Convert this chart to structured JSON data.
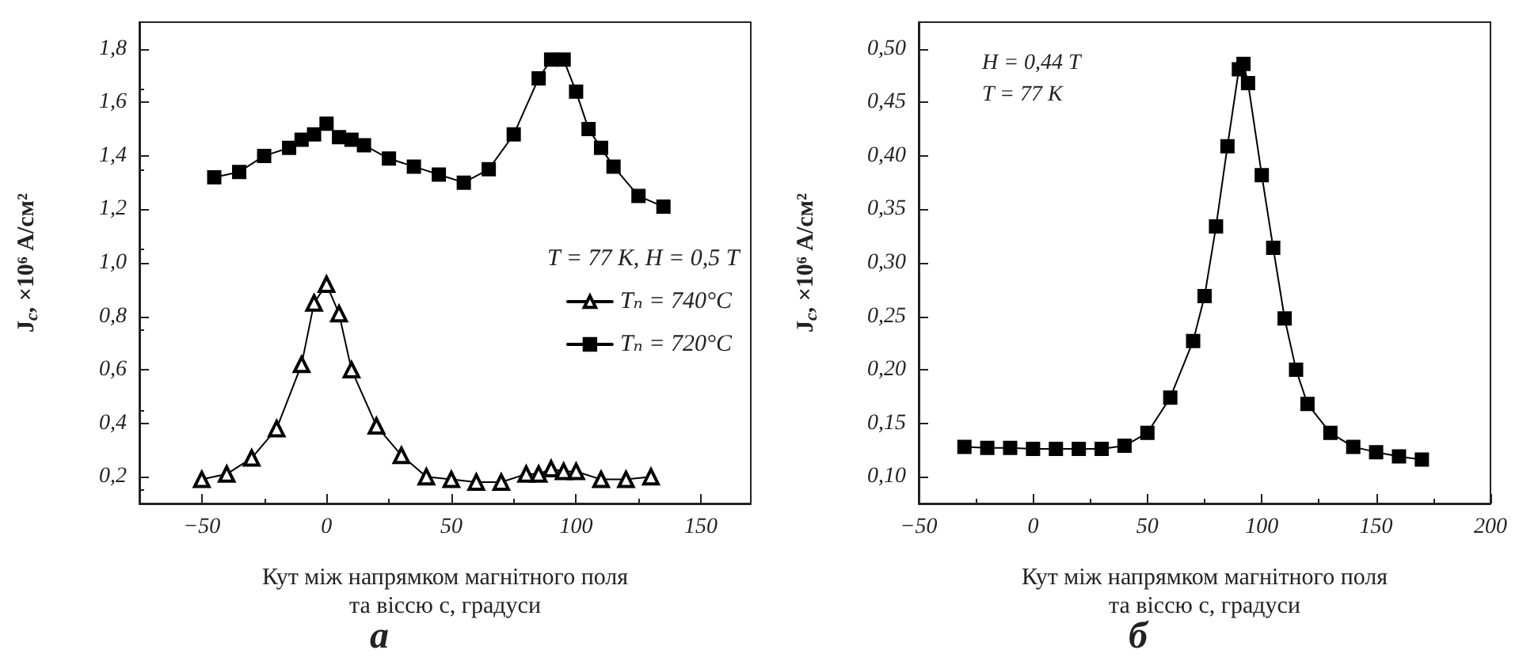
{
  "chart_data": [
    {
      "type": "line",
      "title": "а",
      "xlabel": "Кут між напрямком магнітного поля\nта віссю c, градуси",
      "ylabel": "J$_{c}$, ×10⁶ А/см²",
      "legend_title": "T = 77 К, H = 0,5 T",
      "legend": "right",
      "line_style": "solid",
      "grid": false,
      "xlim": [
        -75,
        170
      ],
      "xticks": [
        {
          "value": -50,
          "label": "−50"
        },
        0,
        50,
        100,
        150
      ],
      "ylim": [
        0.1,
        1.9
      ],
      "yticks": [
        {
          "value": 0.2,
          "label": "0,2"
        },
        {
          "value": 0.4,
          "label": "0,4"
        },
        {
          "value": 0.6,
          "label": "0,6"
        },
        {
          "value": 0.8,
          "label": "0,8"
        },
        {
          "value": 1.0,
          "label": "1,0"
        },
        {
          "value": 1.2,
          "label": "1,2"
        },
        {
          "value": 1.4,
          "label": "1,4"
        },
        {
          "value": 1.6,
          "label": "1,6"
        },
        {
          "value": 1.8,
          "label": "1,8"
        }
      ],
      "series": [
        {
          "name": "Tₙ = 740°C",
          "color": "#000000",
          "marker": "triangle",
          "x": [
            -50,
            -40,
            -30,
            -20,
            -10,
            -5,
            0,
            5,
            10,
            20,
            30,
            40,
            50,
            60,
            70,
            80,
            85,
            90,
            95,
            100,
            110,
            120,
            130
          ],
          "values": [
            0.19,
            0.21,
            0.27,
            0.38,
            0.62,
            0.85,
            0.92,
            0.81,
            0.6,
            0.39,
            0.28,
            0.2,
            0.19,
            0.18,
            0.18,
            0.21,
            0.21,
            0.23,
            0.22,
            0.22,
            0.19,
            0.19,
            0.2
          ]
        },
        {
          "name": "Tₙ = 720°C",
          "color": "#000000",
          "marker": "square",
          "x": [
            -45,
            -35,
            -25,
            -15,
            -10,
            -5,
            0,
            5,
            10,
            15,
            25,
            35,
            45,
            55,
            65,
            75,
            85,
            90,
            95,
            100,
            105,
            110,
            115,
            125,
            135
          ],
          "values": [
            1.32,
            1.34,
            1.4,
            1.43,
            1.46,
            1.48,
            1.52,
            1.47,
            1.46,
            1.44,
            1.39,
            1.36,
            1.33,
            1.3,
            1.35,
            1.48,
            1.69,
            1.76,
            1.76,
            1.64,
            1.5,
            1.43,
            1.36,
            1.25,
            1.21
          ]
        }
      ]
    },
    {
      "type": "line",
      "title": "б",
      "xlabel": "Кут між напрямком магнітного поля\nта віссю c, градуси",
      "ylabel": "J$_{c}$, ×10⁶ А/см²",
      "annotations": [
        "H = 0,44 T",
        "T = 77 К"
      ],
      "marker": "square",
      "line_style": "solid",
      "grid": false,
      "xlim": [
        -50,
        200
      ],
      "xticks": [
        {
          "value": -50,
          "label": "−50"
        },
        0,
        50,
        100,
        150,
        200
      ],
      "ylim": [
        0.075,
        0.525
      ],
      "yticks": [
        {
          "value": 0.1,
          "label": "0,10"
        },
        {
          "value": 0.15,
          "label": "0,15"
        },
        {
          "value": 0.2,
          "label": "0,20"
        },
        {
          "value": 0.25,
          "label": "0,25"
        },
        {
          "value": 0.3,
          "label": "0,30"
        },
        {
          "value": 0.35,
          "label": "0,35"
        },
        {
          "value": 0.4,
          "label": "0,40"
        },
        {
          "value": 0.45,
          "label": "0,45"
        },
        {
          "value": 0.5,
          "label": "0,50"
        }
      ],
      "series": [
        {
          "color": "#000000",
          "x": [
            -30,
            -20,
            -10,
            0,
            10,
            20,
            30,
            40,
            50,
            60,
            70,
            75,
            80,
            85,
            90,
            92,
            94,
            100,
            105,
            110,
            115,
            120,
            130,
            140,
            150,
            160,
            170
          ],
          "values": [
            0.128,
            0.127,
            0.127,
            0.126,
            0.126,
            0.126,
            0.126,
            0.129,
            0.141,
            0.174,
            0.227,
            0.269,
            0.334,
            0.409,
            0.481,
            0.486,
            0.468,
            0.382,
            0.314,
            0.248,
            0.2,
            0.168,
            0.141,
            0.128,
            0.123,
            0.119,
            0.116
          ]
        }
      ]
    }
  ]
}
